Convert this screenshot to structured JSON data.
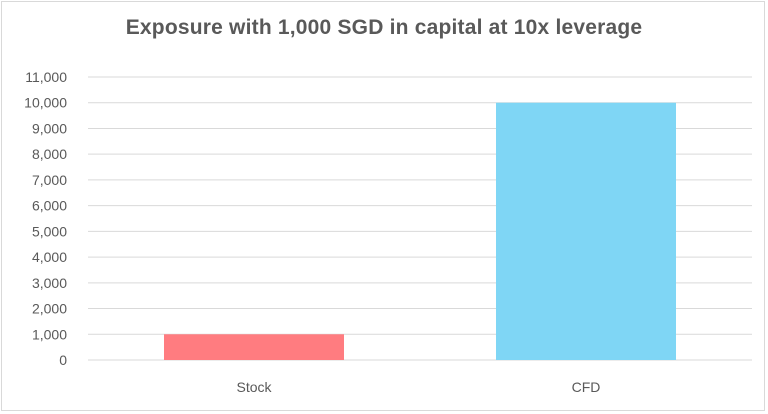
{
  "chart_data": {
    "type": "bar",
    "title": "Exposure with 1,000 SGD in capital at 10x leverage",
    "categories": [
      "Stock",
      "CFD"
    ],
    "values": [
      1000,
      10000
    ],
    "colors": [
      "#ff7c80",
      "#7fd6f5"
    ],
    "ylim": [
      0,
      11000
    ],
    "yticks": [
      "0",
      "1,000",
      "2,000",
      "3,000",
      "4,000",
      "5,000",
      "6,000",
      "7,000",
      "8,000",
      "9,000",
      "10,000",
      "11,000"
    ],
    "grid": true,
    "legend": "none"
  }
}
